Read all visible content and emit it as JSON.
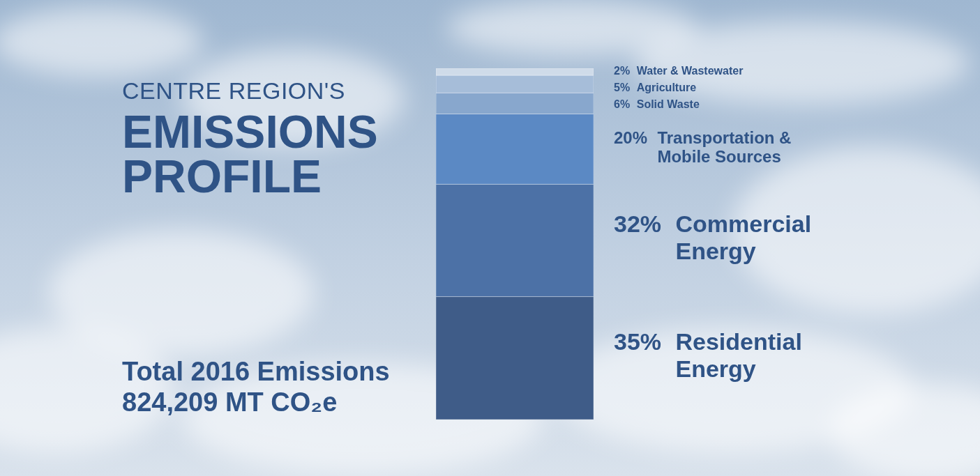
{
  "chart_data": {
    "type": "bar",
    "subtitle": "CENTRE REGION'S",
    "title": "EMISSIONS PROFILE",
    "annotations": [
      "Total 2016 Emissions",
      "824,209 MT CO₂e"
    ],
    "categories": [
      null
    ],
    "series": [
      {
        "name": "Residential Energy",
        "color": "#3f5c88",
        "values": [
          35
        ],
        "value_labels": [
          "35%"
        ]
      },
      {
        "name": "Commercial Energy",
        "color": "#4c71a6",
        "values": [
          32
        ],
        "value_labels": [
          "32%"
        ]
      },
      {
        "name": "Transportation & Mobile Sources",
        "color": "#5b89c4",
        "values": [
          20
        ],
        "value_labels": [
          "20%"
        ]
      },
      {
        "name": "Solid Waste",
        "color": "#88a7cd",
        "values": [
          6
        ],
        "value_labels": [
          "6%"
        ]
      },
      {
        "name": "Agriculture",
        "color": "#a6bdd9",
        "values": [
          5
        ],
        "value_labels": [
          "5%"
        ]
      },
      {
        "name": "Water & Wastewater",
        "color": "#cfdbe9",
        "values": [
          2
        ],
        "value_labels": [
          "2%"
        ]
      }
    ],
    "ylim": [
      0,
      100
    ],
    "stacked": true,
    "data_labels": true,
    "tick_labels": false,
    "legend": "right"
  }
}
